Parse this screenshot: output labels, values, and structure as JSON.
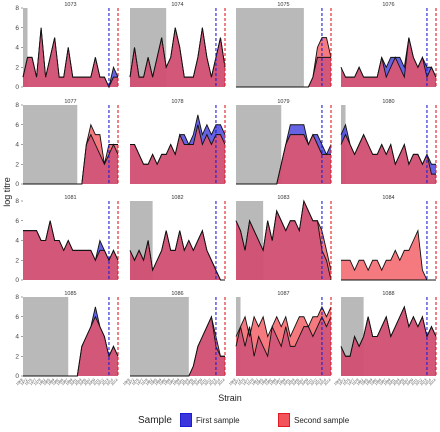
{
  "chart_data": {
    "type": "area",
    "ylabel": "log titre",
    "xlabel": "Strain",
    "ylim": [
      0,
      8
    ],
    "yticks": [
      0,
      2,
      4,
      6,
      8
    ],
    "legend": {
      "title": "Sample",
      "position": "bottom",
      "items": [
        {
          "name": "First sample",
          "fill": "#3a36dc",
          "line": "#1d1dd6"
        },
        {
          "name": "Second sample",
          "fill": "#f2545b",
          "line": "#e01b24"
        }
      ]
    },
    "grid": false,
    "n_strains": 22,
    "x_tick_labels": [
      "1968",
      "1972",
      "1975",
      "1977",
      "1979",
      "1982",
      "1985",
      "1989",
      "1992",
      "1995",
      "1997",
      "1999",
      "2001",
      "2003",
      "2005",
      "2007",
      "2009",
      "2011",
      "2012",
      "2013",
      "2014",
      "2014"
    ],
    "panels": [
      {
        "id": "1073",
        "shade": [
          0,
          1
        ],
        "v1": 19,
        "v2": 21,
        "first": [
          1,
          3,
          3,
          1,
          6,
          1,
          3,
          5,
          1,
          1,
          4,
          1,
          1,
          1,
          1,
          1,
          3,
          1,
          1,
          0,
          2,
          1
        ],
        "second": [
          1,
          3,
          3,
          1,
          6,
          1,
          3,
          5,
          1,
          1,
          4,
          1,
          1,
          1,
          1,
          1,
          3,
          1,
          1,
          0,
          1,
          1
        ]
      },
      {
        "id": "1074",
        "shade": [
          0,
          8
        ],
        "v1": 19,
        "v2": 21,
        "first": [
          1,
          4,
          1,
          1,
          3,
          1,
          3,
          5,
          2,
          3,
          6,
          4,
          1,
          1,
          1,
          3,
          6,
          3,
          1,
          3,
          5,
          2
        ],
        "second": [
          1,
          4,
          1,
          1,
          3,
          1,
          3,
          5,
          2,
          3,
          6,
          4,
          1,
          1,
          1,
          3,
          6,
          3,
          1,
          3,
          5,
          2
        ]
      },
      {
        "id": "1075",
        "shade": [
          0,
          15
        ],
        "v1": 19,
        "v2": 21,
        "first": [
          0,
          0,
          0,
          0,
          0,
          0,
          0,
          0,
          0,
          0,
          0,
          0,
          0,
          0,
          0,
          0,
          0,
          1,
          3,
          3,
          3,
          3
        ],
        "second": [
          0,
          0,
          0,
          0,
          0,
          0,
          0,
          0,
          0,
          0,
          0,
          0,
          0,
          0,
          0,
          0,
          0,
          1,
          4,
          5,
          5,
          3
        ]
      },
      {
        "id": "1076",
        "shade": [
          0,
          0
        ],
        "v1": 19,
        "v2": 21,
        "first": [
          2,
          1,
          1,
          1,
          2,
          1,
          1,
          1,
          1,
          3,
          2,
          3,
          3,
          3,
          2,
          5,
          3,
          2,
          3,
          2,
          2,
          1
        ],
        "second": [
          2,
          1,
          1,
          1,
          2,
          1,
          1,
          1,
          1,
          3,
          1,
          2,
          3,
          2,
          1,
          5,
          3,
          2,
          3,
          1,
          2,
          1
        ]
      },
      {
        "id": "1077",
        "shade": [
          0,
          12
        ],
        "v1": 19,
        "v2": 21,
        "first": [
          0,
          0,
          0,
          0,
          0,
          0,
          0,
          0,
          0,
          0,
          0,
          0,
          0,
          0,
          4,
          5,
          4,
          3,
          2,
          3,
          4,
          3
        ],
        "second": [
          0,
          0,
          0,
          0,
          0,
          0,
          0,
          0,
          0,
          0,
          0,
          0,
          0,
          0,
          4,
          6,
          5,
          5,
          2,
          4,
          4,
          4
        ]
      },
      {
        "id": "1078",
        "shade": [
          0,
          0
        ],
        "v1": 19,
        "v2": 21,
        "first": [
          4,
          4,
          3,
          2,
          2,
          3,
          2,
          3,
          3,
          4,
          3,
          5,
          5,
          4,
          5,
          7,
          5,
          6,
          5,
          6,
          6,
          5
        ],
        "second": [
          4,
          4,
          3,
          2,
          2,
          3,
          2,
          3,
          3,
          4,
          3,
          5,
          4,
          4,
          4,
          6,
          4,
          5,
          4,
          5,
          5,
          4
        ]
      },
      {
        "id": "1079",
        "shade": [
          0,
          10
        ],
        "v1": 19,
        "v2": 21,
        "first": [
          0,
          0,
          0,
          0,
          0,
          0,
          0,
          0,
          0,
          0,
          2,
          4,
          6,
          6,
          6,
          6,
          4,
          5,
          5,
          4,
          3,
          4
        ],
        "second": [
          0,
          0,
          0,
          0,
          0,
          0,
          0,
          0,
          0,
          0,
          2,
          4,
          5,
          5,
          5,
          5,
          4,
          5,
          4,
          3,
          3,
          3
        ]
      },
      {
        "id": "1080",
        "shade": [
          0,
          1
        ],
        "v1": 19,
        "v2": 21,
        "first": [
          5,
          6,
          4,
          3,
          4,
          5,
          4,
          3,
          3,
          4,
          3,
          4,
          2,
          3,
          4,
          2,
          3,
          3,
          2,
          3,
          2,
          2
        ],
        "second": [
          4,
          5,
          4,
          3,
          4,
          5,
          4,
          3,
          3,
          4,
          3,
          4,
          2,
          3,
          4,
          2,
          3,
          3,
          2,
          3,
          1,
          1
        ]
      },
      {
        "id": "1081",
        "shade": [
          0,
          0
        ],
        "v1": 19,
        "v2": 21,
        "first": [
          5,
          5,
          5,
          5,
          4,
          4,
          6,
          4,
          4,
          3,
          4,
          3,
          3,
          3,
          3,
          3,
          2,
          4,
          3,
          2,
          3,
          2
        ],
        "second": [
          5,
          5,
          5,
          5,
          4,
          4,
          6,
          4,
          4,
          3,
          4,
          3,
          3,
          3,
          3,
          3,
          2,
          3,
          3,
          2,
          3,
          2
        ]
      },
      {
        "id": "1082",
        "shade": [
          0,
          5
        ],
        "v1": 19,
        "v2": 21,
        "first": [
          3,
          2,
          3,
          2,
          4,
          1,
          2,
          3,
          5,
          3,
          3,
          5,
          3,
          4,
          3,
          4,
          5,
          3,
          2,
          1,
          0,
          0
        ],
        "second": [
          3,
          2,
          3,
          2,
          4,
          1,
          2,
          3,
          5,
          3,
          3,
          5,
          3,
          4,
          3,
          4,
          5,
          3,
          2,
          1,
          0,
          0
        ]
      },
      {
        "id": "1083",
        "shade": [
          0,
          6
        ],
        "v1": 19,
        "v2": 21,
        "first": [
          6,
          5,
          3,
          6,
          5,
          4,
          3,
          6,
          4,
          7,
          6,
          5,
          6,
          6,
          5,
          8,
          7,
          6,
          6,
          3,
          2,
          0
        ],
        "second": [
          6,
          5,
          3,
          6,
          5,
          4,
          3,
          6,
          4,
          7,
          6,
          5,
          6,
          6,
          5,
          8,
          7,
          6,
          6,
          5,
          3,
          1
        ]
      },
      {
        "id": "1084",
        "shade": [
          0,
          0
        ],
        "v1": 19,
        "v2": 21,
        "first": [
          0,
          0,
          0,
          0,
          0,
          0,
          0,
          0,
          0,
          0,
          0,
          0,
          0,
          0,
          0,
          0,
          0,
          0,
          0,
          0,
          0,
          0
        ],
        "second": [
          2,
          2,
          2,
          1,
          2,
          2,
          1,
          2,
          2,
          1,
          2,
          2,
          3,
          2,
          3,
          3,
          4,
          5,
          1,
          0,
          0,
          0
        ]
      },
      {
        "id": "1085",
        "shade": [
          0,
          10
        ],
        "v1": 19,
        "v2": 21,
        "first": [
          0,
          0,
          0,
          0,
          0,
          0,
          0,
          0,
          0,
          0,
          0,
          0,
          0,
          3,
          4,
          5,
          7,
          5,
          4,
          2,
          3,
          2
        ],
        "second": [
          0,
          0,
          0,
          0,
          0,
          0,
          0,
          0,
          0,
          0,
          0,
          0,
          0,
          3,
          4,
          5,
          6,
          5,
          4,
          2,
          3,
          2
        ]
      },
      {
        "id": "1086",
        "shade": [
          0,
          13
        ],
        "v1": 19,
        "v2": 21,
        "first": [
          0,
          0,
          0,
          0,
          0,
          0,
          0,
          0,
          0,
          0,
          0,
          0,
          0,
          0,
          1,
          3,
          4,
          5,
          6,
          3,
          2,
          2
        ],
        "second": [
          0,
          0,
          0,
          0,
          0,
          0,
          0,
          0,
          0,
          0,
          0,
          0,
          0,
          0,
          1,
          3,
          4,
          5,
          6,
          4,
          2,
          2
        ]
      },
      {
        "id": "1087",
        "shade": [
          0,
          1
        ],
        "v1": 19,
        "v2": 21,
        "first": [
          3,
          5,
          3,
          5,
          2,
          4,
          3,
          2,
          5,
          4,
          3,
          5,
          3,
          3,
          4,
          5,
          5,
          4,
          5,
          6,
          5,
          6
        ],
        "second": [
          4,
          5,
          6,
          4,
          6,
          5,
          6,
          4,
          5,
          6,
          5,
          6,
          4,
          5,
          6,
          6,
          5,
          6,
          6,
          7,
          6,
          7
        ]
      },
      {
        "id": "1088",
        "shade": [
          0,
          5
        ],
        "v1": 19,
        "v2": 21,
        "first": [
          3,
          2,
          2,
          4,
          3,
          4,
          6,
          4,
          4,
          5,
          6,
          4,
          5,
          6,
          7,
          5,
          6,
          5,
          6,
          4,
          5,
          4
        ],
        "second": [
          3,
          2,
          2,
          4,
          3,
          4,
          6,
          4,
          4,
          5,
          6,
          4,
          5,
          6,
          7,
          5,
          6,
          5,
          6,
          4,
          5,
          4
        ]
      }
    ]
  }
}
